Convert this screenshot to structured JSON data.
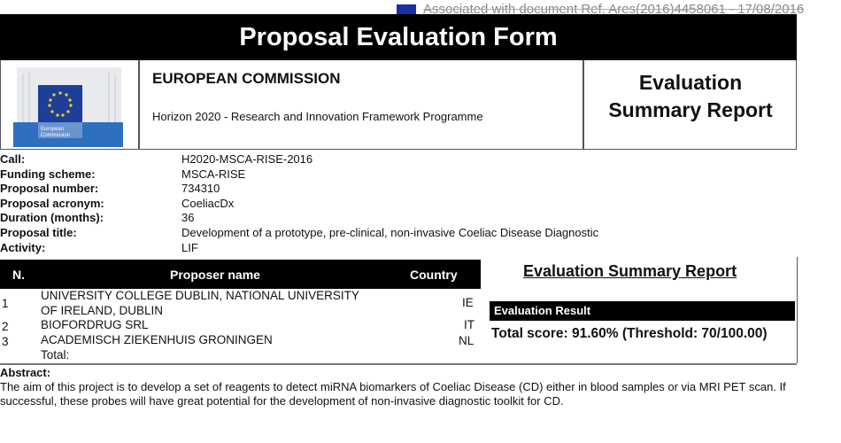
{
  "watermark": "Associated with document Ref. Ares(2016)4458061 - 17/08/2016",
  "title": "Proposal Evaluation Form",
  "header": {
    "org": "EUROPEAN COMMISSION",
    "programme": "Horizon 2020 - Research and Innovation Framework Programme",
    "report_line1": "Evaluation",
    "report_line2": "Summary Report",
    "logo_text": "European Commission"
  },
  "info": [
    {
      "label": "Call:",
      "value": "H2020-MSCA-RISE-2016"
    },
    {
      "label": "Funding scheme:",
      "value": "MSCA-RISE"
    },
    {
      "label": "Proposal number:",
      "value": "734310"
    },
    {
      "label": "Proposal acronym:",
      "value": "CoeliacDx"
    },
    {
      "label": "Duration (months):",
      "value": "36"
    },
    {
      "label": "Proposal title:",
      "value": "Development of a prototype, pre-clinical, non-invasive Coeliac Disease Diagnostic"
    },
    {
      "label": "Activity:",
      "value": "LIF"
    }
  ],
  "table": {
    "headers": [
      "N.",
      "Proposer name",
      "Country"
    ],
    "rows": [
      {
        "n": "1",
        "name1": "UNIVERSITY COLLEGE DUBLIN, NATIONAL UNIVERSITY",
        "name2": "OF IRELAND, DUBLIN",
        "country": "IE"
      },
      {
        "n": "2",
        "name1": "BIOFORDRUG SRL",
        "country": "IT"
      },
      {
        "n": "3",
        "name1": "ACADEMISCH ZIEKENHUIS GRONINGEN",
        "country": "NL"
      }
    ],
    "total": "Total:"
  },
  "summary": {
    "heading": "Evaluation Summary Report",
    "result_label": "Evaluation Result",
    "score": "Total score: 91.60% (Threshold: 70/100.00)"
  },
  "abstract": {
    "label": "Abstract:",
    "text": "The aim of this project is to develop a set of reagents to detect miRNA biomarkers of Coeliac Disease (CD) either in blood samples or via MRI PET scan. If successful, these probes will have great potential for the development of non-invasive diagnostic toolkit for CD."
  }
}
